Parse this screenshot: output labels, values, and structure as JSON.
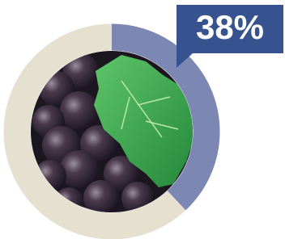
{
  "chart_data": {
    "type": "donut",
    "values": [
      38
    ],
    "value_labels": [
      "38%"
    ],
    "color": "#7c87b3",
    "track_color": "#e6e0d1",
    "label_color": "#36538f"
  }
}
